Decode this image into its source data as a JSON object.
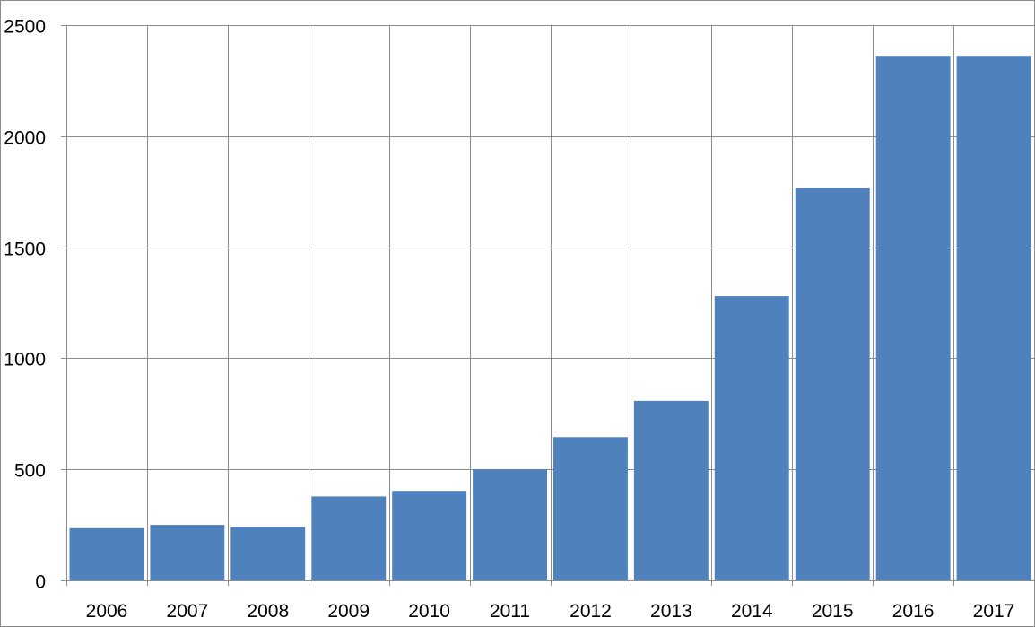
{
  "chart_data": {
    "type": "bar",
    "title": "",
    "xlabel": "",
    "ylabel": "",
    "categories": [
      "2006",
      "2007",
      "2008",
      "2009",
      "2010",
      "2011",
      "2012",
      "2013",
      "2014",
      "2015",
      "2016",
      "2017"
    ],
    "values": [
      235,
      250,
      240,
      378,
      403,
      500,
      645,
      808,
      1280,
      1765,
      2362,
      2362
    ],
    "ylim": [
      0,
      2500
    ],
    "yticks": [
      0,
      500,
      1000,
      1500,
      2000,
      2500
    ],
    "ytick_labels": [
      "0",
      "500",
      "1000",
      "1500",
      "2000",
      "2500"
    ],
    "grid": true,
    "legend": "none",
    "bar_color": "#4F81BD",
    "grid_color": "#8C8C8C"
  }
}
